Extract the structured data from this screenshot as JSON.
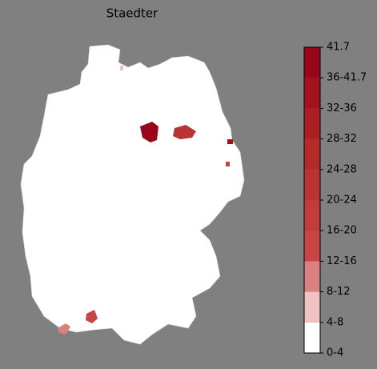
{
  "title": "Staedter",
  "colorbar": {
    "labels": [
      "0-4",
      "4-8",
      "8-12",
      "12-16",
      "16-20",
      "20-24",
      "24-28",
      "28-32",
      "32-36",
      "36-41.7",
      "41.7"
    ],
    "colors": [
      "#ffffff",
      "#f0c2c2",
      "#d98080",
      "#c94444",
      "#c23c3c",
      "#bb3434",
      "#b42a2a",
      "#ab1f24",
      "#a3121f",
      "#99051a"
    ]
  }
}
